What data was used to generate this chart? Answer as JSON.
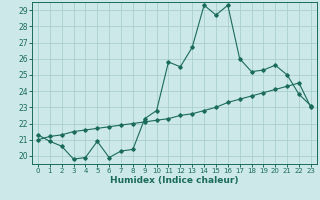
{
  "title": "",
  "xlabel": "Humidex (Indice chaleur)",
  "ylabel": "",
  "background_color": "#cce8e8",
  "grid_color": "#aacfcf",
  "line_color": "#1a6b5a",
  "x_values": [
    0,
    1,
    2,
    3,
    4,
    5,
    6,
    7,
    8,
    9,
    10,
    11,
    12,
    13,
    14,
    15,
    16,
    17,
    18,
    19,
    20,
    21,
    22,
    23
  ],
  "line1_y": [
    21.3,
    20.9,
    20.6,
    19.8,
    19.9,
    20.9,
    19.9,
    20.3,
    20.4,
    22.3,
    22.8,
    25.8,
    25.5,
    26.7,
    29.3,
    28.7,
    29.3,
    26.0,
    25.2,
    25.3,
    25.6,
    25.0,
    23.8,
    23.1
  ],
  "line2_y": [
    21.0,
    21.2,
    21.3,
    21.5,
    21.6,
    21.7,
    21.8,
    21.9,
    22.0,
    22.1,
    22.2,
    22.3,
    22.5,
    22.6,
    22.8,
    23.0,
    23.3,
    23.5,
    23.7,
    23.9,
    24.1,
    24.3,
    24.5,
    23.0
  ],
  "ylim": [
    19.5,
    29.5
  ],
  "yticks": [
    20,
    21,
    22,
    23,
    24,
    25,
    26,
    27,
    28,
    29
  ],
  "xlim": [
    -0.5,
    23.5
  ],
  "xticks": [
    0,
    1,
    2,
    3,
    4,
    5,
    6,
    7,
    8,
    9,
    10,
    11,
    12,
    13,
    14,
    15,
    16,
    17,
    18,
    19,
    20,
    21,
    22,
    23
  ]
}
